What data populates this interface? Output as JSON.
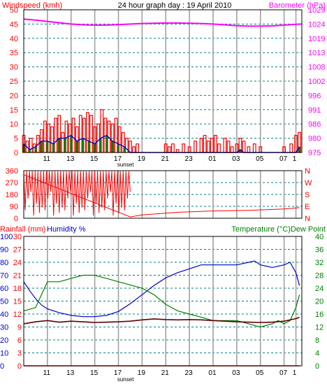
{
  "page_title": "24 hour graph day : 19 April 2010",
  "colors": {
    "red": "#ff0000",
    "magenta": "#ff00ff",
    "blue": "#0000cc",
    "green": "#008000",
    "black": "#000000",
    "grid_dash": "#008080",
    "grid_v": "#a0a0a0",
    "plot_bg": "#ffffff"
  },
  "chart_data": [
    {
      "type": "bar",
      "name": "windspeed-barometer",
      "title": "24 hour graph day : 19 April 2010",
      "left_label": "Windspeed (kmh)",
      "right_label": "Barometer (hPa)",
      "y_left_ticks": [
        0,
        5,
        10,
        15,
        20,
        25,
        30,
        35,
        40,
        45,
        50
      ],
      "y_right_ticks": [
        975,
        980,
        986,
        991,
        996,
        1002,
        1008,
        1013,
        1019,
        1024,
        1029
      ],
      "ylim": [
        0,
        50
      ],
      "y_right_lim": [
        975,
        1029
      ],
      "x_hour_ticks": [
        "11",
        "13",
        "15",
        "17",
        "19",
        "21",
        "23",
        "01",
        "03",
        "05",
        "07"
      ],
      "sunset_label": "sunset",
      "barometer_hpa": [
        [
          9.0,
          1025.5
        ],
        [
          10.0,
          1025.1
        ],
        [
          11.0,
          1024.6
        ],
        [
          12.0,
          1024.1
        ],
        [
          13.0,
          1023.6
        ],
        [
          14.0,
          1023.3
        ],
        [
          15.0,
          1023.2
        ],
        [
          16.0,
          1023.2
        ],
        [
          17.0,
          1023.4
        ],
        [
          18.0,
          1023.6
        ],
        [
          19.0,
          1023.8
        ],
        [
          20.0,
          1023.9
        ],
        [
          21.0,
          1024.0
        ],
        [
          22.0,
          1024.0
        ],
        [
          23.0,
          1023.9
        ],
        [
          24.0,
          1023.8
        ],
        [
          25.0,
          1023.6
        ],
        [
          26.0,
          1023.3
        ],
        [
          27.0,
          1023.0
        ],
        [
          28.0,
          1022.8
        ],
        [
          29.0,
          1022.8
        ],
        [
          30.0,
          1022.9
        ],
        [
          31.0,
          1023.2
        ],
        [
          32.0,
          1023.5
        ],
        [
          32.5,
          1023.6
        ]
      ],
      "gust_kmh": [
        [
          9.0,
          6
        ],
        [
          9.3,
          4
        ],
        [
          9.6,
          5
        ],
        [
          9.9,
          3
        ],
        [
          10.2,
          6
        ],
        [
          10.5,
          8
        ],
        [
          10.8,
          11
        ],
        [
          11.1,
          10
        ],
        [
          11.4,
          9
        ],
        [
          11.7,
          12
        ],
        [
          12.0,
          13
        ],
        [
          12.3,
          7
        ],
        [
          12.6,
          11
        ],
        [
          12.9,
          10
        ],
        [
          13.2,
          12
        ],
        [
          13.5,
          9
        ],
        [
          13.8,
          13
        ],
        [
          14.1,
          12
        ],
        [
          14.4,
          14
        ],
        [
          14.7,
          13
        ],
        [
          15.0,
          9
        ],
        [
          15.3,
          10
        ],
        [
          15.6,
          15
        ],
        [
          15.9,
          12
        ],
        [
          16.2,
          11
        ],
        [
          16.5,
          10
        ],
        [
          16.8,
          12
        ],
        [
          17.1,
          9
        ],
        [
          17.4,
          7
        ],
        [
          17.7,
          5
        ],
        [
          18.0,
          4
        ],
        [
          18.3,
          2
        ],
        [
          18.6,
          3
        ],
        [
          19.0,
          0
        ],
        [
          20.0,
          0
        ],
        [
          21.0,
          3
        ],
        [
          21.3,
          2
        ],
        [
          21.6,
          3
        ],
        [
          22.0,
          1
        ],
        [
          22.5,
          3
        ],
        [
          23.0,
          2
        ],
        [
          23.5,
          4
        ],
        [
          24.0,
          5
        ],
        [
          24.3,
          6
        ],
        [
          24.6,
          4
        ],
        [
          24.9,
          5
        ],
        [
          25.2,
          6
        ],
        [
          25.5,
          3
        ],
        [
          26.0,
          5
        ],
        [
          26.3,
          4
        ],
        [
          26.6,
          2
        ],
        [
          27.0,
          3
        ],
        [
          27.3,
          5
        ],
        [
          27.6,
          4
        ],
        [
          28.0,
          2
        ],
        [
          28.5,
          3
        ],
        [
          29.0,
          2
        ],
        [
          29.5,
          0
        ],
        [
          30.0,
          0
        ],
        [
          31.0,
          2
        ],
        [
          31.6,
          3
        ],
        [
          32.0,
          6
        ],
        [
          32.3,
          7
        ]
      ],
      "average_kmh": [
        [
          9.0,
          3
        ],
        [
          9.5,
          1
        ],
        [
          10.0,
          2
        ],
        [
          10.5,
          4
        ],
        [
          11.0,
          4
        ],
        [
          11.5,
          3
        ],
        [
          12.0,
          5
        ],
        [
          12.5,
          5
        ],
        [
          13.0,
          6
        ],
        [
          13.5,
          4
        ],
        [
          14.0,
          5
        ],
        [
          14.5,
          4
        ],
        [
          15.0,
          3
        ],
        [
          15.5,
          5
        ],
        [
          16.0,
          6
        ],
        [
          16.5,
          4
        ],
        [
          17.0,
          3
        ],
        [
          17.5,
          2
        ],
        [
          18.0,
          0
        ],
        [
          19.0,
          0
        ],
        [
          27.0,
          0
        ],
        [
          27.3,
          1
        ],
        [
          27.6,
          0
        ],
        [
          32.0,
          0
        ],
        [
          32.3,
          2
        ]
      ]
    },
    {
      "type": "line",
      "name": "wind-direction",
      "y_left_ticks": [
        "0",
        "90",
        "180",
        "270",
        "360"
      ],
      "y_right_ticks": [
        "N",
        "E",
        "S",
        "W",
        "N"
      ],
      "ylim": [
        0,
        360
      ],
      "sunset_label": "",
      "direction_deg": [
        [
          9.0,
          330
        ],
        [
          18.0,
          10
        ],
        [
          19.0,
          25
        ],
        [
          22.0,
          45
        ],
        [
          25.0,
          55
        ],
        [
          28.0,
          60
        ],
        [
          31.0,
          70
        ],
        [
          32.3,
          80
        ]
      ]
    },
    {
      "type": "line",
      "name": "temp-humidity-rain",
      "left_label_rain": "Rainfall (mm)",
      "left_label_humidity": "Humidity %",
      "right_label": "Temperature (°C)Dew Point",
      "y_rain_ticks": [
        "0",
        "3",
        "6",
        "9",
        "12",
        "15",
        "18",
        "21",
        "24",
        "27",
        "30"
      ],
      "y_humidity_ticks": [
        "0",
        "10",
        "20",
        "30",
        "40",
        "50",
        "60",
        "70",
        "80",
        "90",
        "100"
      ],
      "y_temp_ticks": [
        "0",
        "4",
        "8",
        "12",
        "16",
        "20",
        "24",
        "28",
        "32",
        "36",
        "40"
      ],
      "ylim_humidity": [
        0,
        100
      ],
      "ylim_temp": [
        0,
        40
      ],
      "sunset_label": "sunset",
      "humidity_pct": [
        [
          9.0,
          65
        ],
        [
          9.5,
          58
        ],
        [
          10.0,
          52
        ],
        [
          10.5,
          47
        ],
        [
          11.0,
          44
        ],
        [
          12.0,
          41
        ],
        [
          13.0,
          39
        ],
        [
          14.0,
          38
        ],
        [
          15.0,
          38
        ],
        [
          16.0,
          39
        ],
        [
          17.0,
          42
        ],
        [
          18.0,
          48
        ],
        [
          19.0,
          55
        ],
        [
          20.0,
          62
        ],
        [
          21.0,
          68
        ],
        [
          22.0,
          72
        ],
        [
          23.0,
          75
        ],
        [
          24.0,
          78
        ],
        [
          25.0,
          78
        ],
        [
          26.0,
          78
        ],
        [
          27.0,
          78
        ],
        [
          28.0,
          80
        ],
        [
          28.5,
          81
        ],
        [
          29.0,
          78
        ],
        [
          30.0,
          76
        ],
        [
          31.0,
          78
        ],
        [
          31.5,
          80
        ],
        [
          32.0,
          72
        ],
        [
          32.3,
          62
        ]
      ],
      "temperature_c": [
        [
          9.0,
          17
        ],
        [
          10.0,
          18
        ],
        [
          10.5,
          22
        ],
        [
          11.0,
          26
        ],
        [
          12.0,
          26
        ],
        [
          13.0,
          27
        ],
        [
          14.0,
          28
        ],
        [
          15.0,
          28
        ],
        [
          16.0,
          27
        ],
        [
          17.0,
          26
        ],
        [
          18.0,
          25
        ],
        [
          19.0,
          24
        ],
        [
          20.0,
          22
        ],
        [
          21.0,
          19
        ],
        [
          22.0,
          17
        ],
        [
          23.0,
          16
        ],
        [
          24.0,
          15
        ],
        [
          25.0,
          14
        ],
        [
          26.0,
          14
        ],
        [
          27.0,
          14
        ],
        [
          28.0,
          13
        ],
        [
          29.0,
          12
        ],
        [
          30.0,
          13
        ],
        [
          30.5,
          14
        ],
        [
          31.0,
          13
        ],
        [
          31.5,
          14
        ],
        [
          32.0,
          18
        ],
        [
          32.3,
          22
        ]
      ],
      "dew_point_c": [
        [
          9.0,
          13
        ],
        [
          10.0,
          13.6
        ],
        [
          11.0,
          14
        ],
        [
          12.0,
          13.5
        ],
        [
          13.0,
          13.8
        ],
        [
          14.0,
          13.6
        ],
        [
          15.0,
          13.4
        ],
        [
          16.0,
          13.5
        ],
        [
          17.0,
          13.6
        ],
        [
          18.0,
          13.8
        ],
        [
          19.0,
          14.2
        ],
        [
          20.0,
          14.5
        ],
        [
          21.0,
          14.3
        ],
        [
          22.0,
          14.2
        ],
        [
          23.0,
          14.3
        ],
        [
          24.0,
          14.2
        ],
        [
          25.0,
          14.0
        ],
        [
          26.0,
          13.8
        ],
        [
          27.0,
          13.6
        ],
        [
          28.0,
          13.5
        ],
        [
          29.0,
          13.4
        ],
        [
          30.0,
          13.5
        ],
        [
          31.0,
          13.8
        ],
        [
          32.0,
          14.6
        ],
        [
          32.3,
          15
        ]
      ],
      "rainfall_mm": [
        [
          9.0,
          0
        ],
        [
          32.3,
          0
        ]
      ]
    }
  ]
}
